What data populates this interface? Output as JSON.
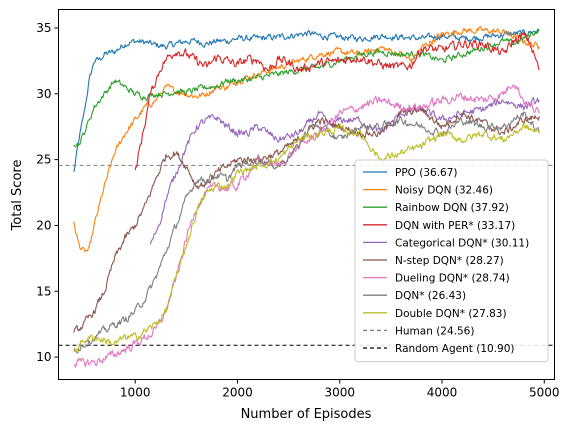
{
  "chart_data": {
    "type": "line",
    "title": "",
    "xlabel": "Number of Episodes",
    "ylabel": "Total Score",
    "xlim": [
      250,
      5100
    ],
    "ylim": [
      8.3,
      36.4
    ],
    "xticks": [
      1000,
      2000,
      3000,
      4000,
      5000
    ],
    "yticks": [
      10,
      15,
      20,
      25,
      30,
      35
    ],
    "grid": false,
    "legend_position": "lower-right",
    "series": [
      {
        "name": "PPO (36.67)",
        "color": "#1f77b4",
        "noise": 0.25,
        "points": [
          [
            400,
            24.0
          ],
          [
            450,
            26.5
          ],
          [
            500,
            28.5
          ],
          [
            550,
            31.0
          ],
          [
            600,
            32.5
          ],
          [
            650,
            32.6
          ],
          [
            700,
            33.0
          ],
          [
            800,
            33.2
          ],
          [
            900,
            33.8
          ],
          [
            1000,
            34.0
          ],
          [
            1100,
            33.9
          ],
          [
            1200,
            33.7
          ],
          [
            1300,
            33.6
          ],
          [
            1400,
            33.8
          ],
          [
            1500,
            34.0
          ],
          [
            1600,
            34.0
          ],
          [
            1700,
            33.8
          ],
          [
            1800,
            34.0
          ],
          [
            1900,
            34.0
          ],
          [
            2000,
            34.2
          ],
          [
            2200,
            34.2
          ],
          [
            2400,
            34.3
          ],
          [
            2600,
            34.5
          ],
          [
            2700,
            34.6
          ],
          [
            2800,
            34.4
          ],
          [
            3000,
            34.3
          ],
          [
            3200,
            34.2
          ],
          [
            3400,
            34.4
          ],
          [
            3600,
            34.3
          ],
          [
            3800,
            34.2
          ],
          [
            4000,
            34.4
          ],
          [
            4200,
            34.2
          ],
          [
            4400,
            34.3
          ],
          [
            4600,
            34.5
          ],
          [
            4800,
            34.6
          ],
          [
            4950,
            34.8
          ]
        ]
      },
      {
        "name": "Noisy DQN (32.46)",
        "color": "#ff7f0e",
        "noise": 0.25,
        "points": [
          [
            400,
            20.2
          ],
          [
            450,
            18.5
          ],
          [
            500,
            18.0
          ],
          [
            550,
            18.1
          ],
          [
            600,
            20.0
          ],
          [
            650,
            21.5
          ],
          [
            700,
            23.0
          ],
          [
            800,
            25.5
          ],
          [
            900,
            27.0
          ],
          [
            1000,
            28.0
          ],
          [
            1100,
            29.0
          ],
          [
            1200,
            29.5
          ],
          [
            1300,
            30.5
          ],
          [
            1400,
            30.2
          ],
          [
            1500,
            30.0
          ],
          [
            1600,
            29.8
          ],
          [
            1700,
            30.0
          ],
          [
            1800,
            30.5
          ],
          [
            1900,
            30.5
          ],
          [
            2000,
            31.0
          ],
          [
            2200,
            31.5
          ],
          [
            2400,
            32.0
          ],
          [
            2600,
            32.5
          ],
          [
            2800,
            33.0
          ],
          [
            3000,
            33.2
          ],
          [
            3200,
            33.0
          ],
          [
            3400,
            33.5
          ],
          [
            3600,
            33.0
          ],
          [
            3700,
            32.5
          ],
          [
            3800,
            33.5
          ],
          [
            4000,
            34.5
          ],
          [
            4200,
            34.8
          ],
          [
            4400,
            34.8
          ],
          [
            4600,
            34.7
          ],
          [
            4750,
            34.2
          ],
          [
            4850,
            33.8
          ],
          [
            4950,
            33.6
          ]
        ]
      },
      {
        "name": "Rainbow DQN (37.92)",
        "color": "#2ca02c",
        "noise": 0.25,
        "points": [
          [
            400,
            26.3
          ],
          [
            450,
            26.2
          ],
          [
            500,
            27.0
          ],
          [
            550,
            28.0
          ],
          [
            600,
            29.0
          ],
          [
            700,
            30.0
          ],
          [
            800,
            31.0
          ],
          [
            900,
            30.5
          ],
          [
            1000,
            30.0
          ],
          [
            1100,
            29.8
          ],
          [
            1200,
            30.0
          ],
          [
            1300,
            30.0
          ],
          [
            1400,
            30.2
          ],
          [
            1500,
            30.1
          ],
          [
            1600,
            30.3
          ],
          [
            1700,
            30.5
          ],
          [
            1800,
            30.6
          ],
          [
            1900,
            31.0
          ],
          [
            2000,
            31.0
          ],
          [
            2200,
            31.2
          ],
          [
            2400,
            31.5
          ],
          [
            2600,
            31.8
          ],
          [
            2800,
            32.0
          ],
          [
            3000,
            32.5
          ],
          [
            3200,
            33.0
          ],
          [
            3400,
            33.2
          ],
          [
            3600,
            33.0
          ],
          [
            3800,
            33.0
          ],
          [
            4000,
            32.5
          ],
          [
            4200,
            33.0
          ],
          [
            4400,
            33.5
          ],
          [
            4600,
            34.0
          ],
          [
            4700,
            33.8
          ],
          [
            4800,
            34.2
          ],
          [
            4950,
            34.9
          ]
        ]
      },
      {
        "name": "DQN with PER* (33.17)",
        "color": "#d62728",
        "noise": 0.35,
        "points": [
          [
            1000,
            24.0
          ],
          [
            1100,
            28.0
          ],
          [
            1150,
            30.0
          ],
          [
            1200,
            31.0
          ],
          [
            1250,
            32.0
          ],
          [
            1300,
            32.6
          ],
          [
            1400,
            33.3
          ],
          [
            1500,
            33.0
          ],
          [
            1600,
            32.5
          ],
          [
            1700,
            32.0
          ],
          [
            1800,
            32.8
          ],
          [
            1900,
            32.5
          ],
          [
            2000,
            32.2
          ],
          [
            2100,
            32.6
          ],
          [
            2200,
            32.6
          ],
          [
            2300,
            31.8
          ],
          [
            2400,
            32.6
          ],
          [
            2500,
            32.4
          ],
          [
            2600,
            31.8
          ],
          [
            2800,
            32.3
          ],
          [
            3000,
            32.5
          ],
          [
            3200,
            32.8
          ],
          [
            3400,
            32.2
          ],
          [
            3600,
            32.0
          ],
          [
            3700,
            32.2
          ],
          [
            3800,
            33.5
          ],
          [
            4000,
            33.3
          ],
          [
            4200,
            33.8
          ],
          [
            4400,
            33.8
          ],
          [
            4600,
            33.0
          ],
          [
            4700,
            34.0
          ],
          [
            4800,
            34.4
          ],
          [
            4850,
            34.0
          ],
          [
            4900,
            33.0
          ],
          [
            4950,
            31.8
          ]
        ]
      },
      {
        "name": "Categorical DQN* (30.11)",
        "color": "#9467bd",
        "noise": 0.3,
        "points": [
          [
            1150,
            18.5
          ],
          [
            1200,
            19.5
          ],
          [
            1250,
            20.5
          ],
          [
            1300,
            22.0
          ],
          [
            1400,
            24.0
          ],
          [
            1500,
            26.0
          ],
          [
            1600,
            27.5
          ],
          [
            1700,
            28.0
          ],
          [
            1800,
            28.2
          ],
          [
            1900,
            27.5
          ],
          [
            2000,
            27.0
          ],
          [
            2100,
            27.0
          ],
          [
            2200,
            27.5
          ],
          [
            2300,
            27.0
          ],
          [
            2400,
            26.5
          ],
          [
            2600,
            27.0
          ],
          [
            2800,
            28.5
          ],
          [
            2900,
            27.5
          ],
          [
            3000,
            28.0
          ],
          [
            3200,
            28.0
          ],
          [
            3400,
            27.0
          ],
          [
            3600,
            28.5
          ],
          [
            3800,
            28.8
          ],
          [
            4000,
            28.0
          ],
          [
            4200,
            28.5
          ],
          [
            4400,
            28.8
          ],
          [
            4600,
            29.5
          ],
          [
            4800,
            29.0
          ],
          [
            4950,
            29.5
          ]
        ]
      },
      {
        "name": "N-step DQN* (28.27)",
        "color": "#8c564b",
        "noise": 0.3,
        "points": [
          [
            400,
            11.8
          ],
          [
            500,
            12.5
          ],
          [
            600,
            13.5
          ],
          [
            700,
            15.0
          ],
          [
            800,
            17.5
          ],
          [
            900,
            19.0
          ],
          [
            1000,
            20.0
          ],
          [
            1100,
            21.5
          ],
          [
            1200,
            23.5
          ],
          [
            1300,
            25.3
          ],
          [
            1400,
            25.5
          ],
          [
            1500,
            24.5
          ],
          [
            1600,
            23.0
          ],
          [
            1700,
            23.2
          ],
          [
            1800,
            24.0
          ],
          [
            1900,
            24.5
          ],
          [
            2000,
            25.0
          ],
          [
            2200,
            25.0
          ],
          [
            2400,
            25.5
          ],
          [
            2600,
            26.5
          ],
          [
            2800,
            28.0
          ],
          [
            3000,
            27.5
          ],
          [
            3200,
            27.0
          ],
          [
            3400,
            27.0
          ],
          [
            3600,
            28.5
          ],
          [
            3800,
            28.8
          ],
          [
            4000,
            27.5
          ],
          [
            4200,
            28.5
          ],
          [
            4400,
            27.8
          ],
          [
            4600,
            27.0
          ],
          [
            4800,
            28.0
          ],
          [
            4950,
            28.3
          ]
        ]
      },
      {
        "name": "Dueling DQN* (28.74)",
        "color": "#e377c2",
        "noise": 0.35,
        "points": [
          [
            400,
            9.5
          ],
          [
            600,
            9.6
          ],
          [
            800,
            10.2
          ],
          [
            1000,
            11.0
          ],
          [
            1200,
            12.0
          ],
          [
            1300,
            13.5
          ],
          [
            1400,
            16.0
          ],
          [
            1500,
            19.0
          ],
          [
            1600,
            21.5
          ],
          [
            1700,
            22.5
          ],
          [
            1800,
            23.0
          ],
          [
            1900,
            22.8
          ],
          [
            2000,
            23.0
          ],
          [
            2200,
            25.0
          ],
          [
            2400,
            24.5
          ],
          [
            2600,
            26.0
          ],
          [
            2800,
            27.0
          ],
          [
            3000,
            28.5
          ],
          [
            3200,
            29.0
          ],
          [
            3400,
            29.5
          ],
          [
            3600,
            29.0
          ],
          [
            3800,
            29.0
          ],
          [
            4000,
            29.5
          ],
          [
            4200,
            29.8
          ],
          [
            4400,
            29.5
          ],
          [
            4600,
            30.0
          ],
          [
            4700,
            31.0
          ],
          [
            4800,
            29.5
          ],
          [
            4950,
            28.5
          ]
        ]
      },
      {
        "name": "DQN* (26.43)",
        "color": "#7f7f7f",
        "noise": 0.3,
        "points": [
          [
            400,
            10.5
          ],
          [
            500,
            11.0
          ],
          [
            600,
            11.5
          ],
          [
            700,
            12.0
          ],
          [
            800,
            12.5
          ],
          [
            900,
            12.8
          ],
          [
            1000,
            13.5
          ],
          [
            1100,
            14.5
          ],
          [
            1200,
            16.0
          ],
          [
            1300,
            18.0
          ],
          [
            1400,
            20.0
          ],
          [
            1500,
            22.0
          ],
          [
            1600,
            23.5
          ],
          [
            1700,
            23.5
          ],
          [
            1800,
            23.8
          ],
          [
            1900,
            23.5
          ],
          [
            2000,
            24.5
          ],
          [
            2200,
            25.0
          ],
          [
            2400,
            24.5
          ],
          [
            2600,
            26.0
          ],
          [
            2700,
            27.5
          ],
          [
            2800,
            27.5
          ],
          [
            3000,
            26.5
          ],
          [
            3200,
            27.5
          ],
          [
            3400,
            27.5
          ],
          [
            3600,
            28.0
          ],
          [
            3800,
            27.5
          ],
          [
            4000,
            27.0
          ],
          [
            4200,
            28.0
          ],
          [
            4400,
            27.5
          ],
          [
            4600,
            27.5
          ],
          [
            4800,
            28.5
          ],
          [
            4950,
            27.0
          ]
        ]
      },
      {
        "name": "Double DQN* (27.83)",
        "color": "#bcbd22",
        "noise": 0.3,
        "points": [
          [
            400,
            10.5
          ],
          [
            500,
            11.3
          ],
          [
            600,
            11.5
          ],
          [
            700,
            11.3
          ],
          [
            800,
            11.0
          ],
          [
            900,
            11.5
          ],
          [
            1000,
            11.5
          ],
          [
            1100,
            12.0
          ],
          [
            1200,
            12.5
          ],
          [
            1300,
            13.5
          ],
          [
            1400,
            16.0
          ],
          [
            1500,
            18.5
          ],
          [
            1600,
            21.0
          ],
          [
            1700,
            22.5
          ],
          [
            1800,
            23.0
          ],
          [
            1900,
            23.0
          ],
          [
            2000,
            24.0
          ],
          [
            2200,
            24.5
          ],
          [
            2400,
            25.0
          ],
          [
            2600,
            26.5
          ],
          [
            2800,
            27.0
          ],
          [
            3000,
            27.3
          ],
          [
            3200,
            27.0
          ],
          [
            3300,
            26.0
          ],
          [
            3400,
            25.0
          ],
          [
            3600,
            25.5
          ],
          [
            3800,
            26.0
          ],
          [
            4000,
            27.0
          ],
          [
            4200,
            26.5
          ],
          [
            4400,
            27.0
          ],
          [
            4600,
            26.5
          ],
          [
            4800,
            27.5
          ],
          [
            4950,
            27.0
          ]
        ]
      }
    ],
    "reference_lines": [
      {
        "name": "Human (24.56)",
        "y": 24.56,
        "color": "#7f7f7f",
        "dash": "4 3"
      },
      {
        "name": "Random Agent (10.90)",
        "y": 10.9,
        "color": "#000000",
        "dash": "4 3"
      }
    ]
  }
}
